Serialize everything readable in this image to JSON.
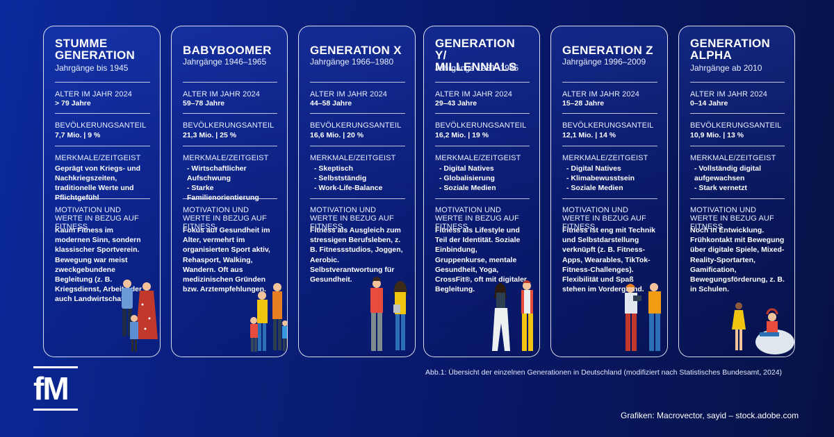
{
  "generations": [
    {
      "title": "STUMME\nGENERATION",
      "years": "Jahrgänge bis 1945",
      "age_label": "ALTER IM JAHR 2024",
      "age": "> 79 Jahre",
      "share_label": "BEVÖLKERUNGSANTEIL",
      "share": "7,7 Mio.  |  9 %",
      "traits_label": "MERKMALE/ZEITGEIST",
      "traits": [
        "Geprägt von Kriegs- und Nachkriegszeiten, traditionelle Werte und Pflichtgefühl"
      ],
      "motivation_label": "MOTIVATION UND WERTE IN BEZUG AUF FITNESS",
      "motivation": "Kaum Fitness im modernen Sinn, sondern klassischer Sportverein. Bewegung war meist zweckgebundene Begleitung (z. B. Kriegsdienst, Arbeit oder auch Landwirtschaft)."
    },
    {
      "title": "BABYBOOMER",
      "years": "Jahrgänge 1946–1965",
      "age_label": "ALTER IM JAHR 2024",
      "age": "59–78 Jahre",
      "share_label": "BEVÖLKERUNGSANTEIL",
      "share": "21,3 Mio.  |  25 %",
      "traits_label": "MERKMALE/ZEITGEIST",
      "traits": [
        "- Wirtschaftlicher\n  Aufschwung",
        "- Starke Familienorientierung"
      ],
      "motivation_label": "MOTIVATION UND WERTE IN BEZUG AUF FITNESS",
      "motivation": "Fokus auf Gesundheit im Alter, vermehrt im organisierten Sport aktiv, Rehasport, Walking, Wandern. Oft aus medizinischen Gründen bzw. Arztempfehlungen."
    },
    {
      "title": "GENERATION X",
      "years": "Jahrgänge 1966–1980",
      "age_label": "ALTER IM JAHR 2024",
      "age": "44–58 Jahre",
      "share_label": "BEVÖLKERUNGSANTEIL",
      "share": "16,6 Mio.  |  20 %",
      "traits_label": "MERKMALE/ZEITGEIST",
      "traits": [
        "- Skeptisch",
        "- Selbstständig",
        "- Work-Life-Balance"
      ],
      "motivation_label": "MOTIVATION UND WERTE IN BEZUG AUF FITNESS",
      "motivation": "Fitness als Ausgleich zum stressigen Berufsleben, z. B. Fitnessstudios, Joggen, Aerobic. Selbstverantwortung für Gesundheit."
    },
    {
      "title": "GENERATION Y/\nMILLENNIALS",
      "years": "Jahrgänge 1981–1995",
      "age_label": "ALTER IM JAHR 2024",
      "age": "29–43 Jahre",
      "share_label": "BEVÖLKERUNGSANTEIL",
      "share": "16,2 Mio.  |  19 %",
      "traits_label": "MERKMALE/ZEITGEIST",
      "traits": [
        "- Digital Natives",
        "- Globalisierung",
        "- Soziale Medien"
      ],
      "motivation_label": "MOTIVATION UND WERTE IN BEZUG AUF FITNESS",
      "motivation": "Fitness als Lifestyle und Teil der Identität. Soziale Einbindung, Gruppenkurse, mentale Gesundheit, Yoga, CrossFit®, oft mit digitaler Begleitung."
    },
    {
      "title": "GENERATION Z",
      "years": "Jahrgänge 1996–2009",
      "age_label": "ALTER IM JAHR 2024",
      "age": "15–28 Jahre",
      "share_label": "BEVÖLKERUNGSANTEIL",
      "share": "12,1 Mio.  |  14 %",
      "traits_label": "MERKMALE/ZEITGEIST",
      "traits": [
        "- Digital Natives",
        "- Klimabewusstsein",
        "- Soziale Medien"
      ],
      "motivation_label": "MOTIVATION UND WERTE IN BEZUG AUF FITNESS",
      "motivation": "Fitness ist eng mit Technik und Selbstdarstellung verknüpft (z. B. Fitness-Apps, Wearables, TikTok-Fitness-Challenges). Flexibilität und Spaß stehen im Vordergrund."
    },
    {
      "title": "GENERATION\nALPHA",
      "years": "Jahrgänge ab 2010",
      "age_label": "ALTER IM JAHR 2024",
      "age": "0–14 Jahre",
      "share_label": "BEVÖLKERUNGSANTEIL",
      "share": "10,9 Mio.  |  13 %",
      "traits_label": "MERKMALE/ZEITGEIST",
      "traits": [
        "- Vollständig digital\n  aufgewachsen",
        "- Stark vernetzt"
      ],
      "motivation_label": "MOTIVATION UND WERTE IN BEZUG AUF FITNESS",
      "motivation": "Noch in Entwicklung. Frühkontakt mit Bewegung über digitale Spiele, Mixed-Reality-Sportarten, Gamification, Bewegungsförderung, z. B. in Schulen."
    }
  ],
  "caption": "Abb.1: Übersicht der einzelnen Generationen in Deutschland (modifiziert nach Statistisches Bundesamt, 2024)",
  "credits": "Grafiken: Macrovector, sayid – stock.adobe.com",
  "logo": "fM",
  "colors": {
    "background": "#0a1f7d",
    "card_border": "#ffffff",
    "text": "#ffffff"
  }
}
